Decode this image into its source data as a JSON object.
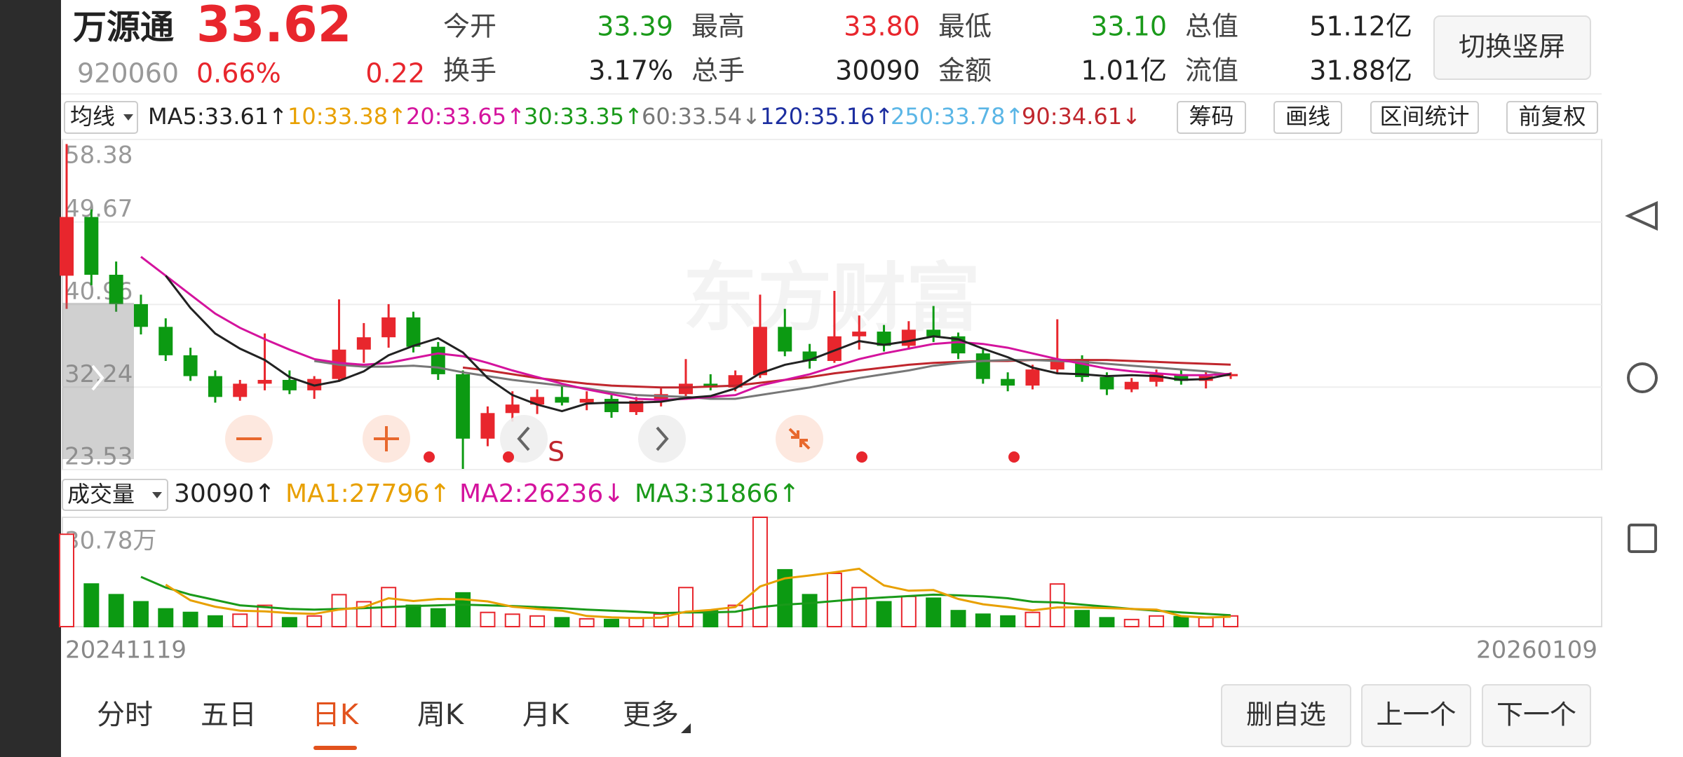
{
  "header": {
    "name": "万源通",
    "price": "33.62",
    "code": "920060",
    "change_pct": "0.66%",
    "change": "0.22",
    "stats": [
      [
        {
          "label": "今开",
          "value": "33.39",
          "color": "#1a9a1a"
        },
        {
          "label": "最高",
          "value": "33.80",
          "color": "#e8262d"
        },
        {
          "label": "最低",
          "value": "33.10",
          "color": "#1a9a1a"
        },
        {
          "label": "总值",
          "value": "51.12亿",
          "color": "#222222"
        }
      ],
      [
        {
          "label": "换手",
          "value": "3.17%",
          "color": "#222222"
        },
        {
          "label": "总手",
          "value": "30090",
          "color": "#222222"
        },
        {
          "label": "金额",
          "value": "1.01亿",
          "color": "#222222"
        },
        {
          "label": "流值",
          "value": "31.88亿",
          "color": "#222222"
        }
      ]
    ],
    "toggle_button": "切换竖屏"
  },
  "indicator_bar": {
    "selector": "均线",
    "items": [
      {
        "text": "MA5:33.61↑",
        "color": "#222222"
      },
      {
        "text": "10:33.38↑",
        "color": "#e8a000"
      },
      {
        "text": "20:33.65↑",
        "color": "#d4139d"
      },
      {
        "text": "30:33.35↑",
        "color": "#1a9a1a"
      },
      {
        "text": "60:33.54↓",
        "color": "#777777"
      },
      {
        "text": "120:35.16↑",
        "color": "#1c2ea0"
      },
      {
        "text": "250:33.78↑",
        "color": "#5bb6e6"
      },
      {
        "text": "90:34.61↓",
        "color": "#c0262d"
      }
    ],
    "buttons": [
      "筹码",
      "画线",
      "区间统计",
      "前复权"
    ]
  },
  "kline": {
    "type": "candlestick",
    "ylim": [
      23.53,
      58.38
    ],
    "yticks": [
      58.38,
      49.67,
      40.96,
      32.24,
      23.53
    ],
    "up_color": "#e8262d",
    "down_color": "#0c9a12",
    "watermark": "东方财富",
    "signal_label": "S",
    "open": [
      44.0,
      50.2,
      44.1,
      41.0,
      38.6,
      35.6,
      33.4,
      31.2,
      32.6,
      33.0,
      31.9,
      33.1,
      36.2,
      37.5,
      39.6,
      36.5,
      33.6,
      26.8,
      29.5,
      30.4,
      31.2,
      30.6,
      31.0,
      29.6,
      30.8,
      31.5,
      32.6,
      32.2,
      33.5,
      38.6,
      36.0,
      35.0,
      37.6,
      38.1,
      36.6,
      38.3,
      37.6,
      35.8,
      33.1,
      32.4,
      34.1,
      35.2,
      33.3,
      32.0,
      32.8,
      33.6,
      32.9,
      33.39
    ],
    "high": [
      57.9,
      51.0,
      45.5,
      42.0,
      39.5,
      36.4,
      34.0,
      33.0,
      37.9,
      34.0,
      33.4,
      41.5,
      39.0,
      41.0,
      40.2,
      37.0,
      34.0,
      30.2,
      31.8,
      32.0,
      32.6,
      31.8,
      31.4,
      31.2,
      32.1,
      35.2,
      33.6,
      34.0,
      42.0,
      40.5,
      36.8,
      42.4,
      39.8,
      38.8,
      39.2,
      40.8,
      38.0,
      36.2,
      33.8,
      34.6,
      39.4,
      35.6,
      33.8,
      33.2,
      34.1,
      34.0,
      33.9,
      33.8
    ],
    "low": [
      40.5,
      43.0,
      40.2,
      37.8,
      35.0,
      32.9,
      30.6,
      30.8,
      31.9,
      31.5,
      31.0,
      32.8,
      34.8,
      36.4,
      35.9,
      33.0,
      23.6,
      26.0,
      28.6,
      29.4,
      30.3,
      29.8,
      29.0,
      29.3,
      30.2,
      31.1,
      31.9,
      31.8,
      33.2,
      35.5,
      34.2,
      34.8,
      36.2,
      36.0,
      36.2,
      37.0,
      35.2,
      32.6,
      31.8,
      32.0,
      33.6,
      32.8,
      31.4,
      31.7,
      32.3,
      32.5,
      32.1,
      33.1
    ],
    "close": [
      50.2,
      44.1,
      41.0,
      38.6,
      35.6,
      33.4,
      31.2,
      32.6,
      33.0,
      31.9,
      33.1,
      36.2,
      37.5,
      39.6,
      36.5,
      33.6,
      26.8,
      29.5,
      30.4,
      31.2,
      30.6,
      31.0,
      29.6,
      30.8,
      31.5,
      32.6,
      32.2,
      33.5,
      38.6,
      36.0,
      35.0,
      37.6,
      38.1,
      36.6,
      38.3,
      37.6,
      35.8,
      33.1,
      32.4,
      34.1,
      35.2,
      33.3,
      32.0,
      32.8,
      33.6,
      32.9,
      33.4,
      33.62
    ],
    "ma_lines": [
      {
        "color": "#c0262d",
        "values": [
          null,
          null,
          null,
          null,
          null,
          null,
          null,
          null,
          null,
          null,
          null,
          null,
          null,
          null,
          null,
          null,
          34.3,
          34.0,
          33.6,
          33.2,
          32.9,
          32.6,
          32.4,
          32.3,
          32.2,
          32.2,
          32.3,
          32.4,
          32.7,
          33.0,
          33.3,
          33.7,
          34.0,
          34.3,
          34.6,
          34.8,
          34.9,
          35.0,
          35.0,
          35.1,
          35.1,
          35.1,
          35.1,
          35.0,
          34.9,
          34.8,
          34.7,
          34.61
        ]
      },
      {
        "color": "#777777",
        "values": [
          null,
          null,
          null,
          null,
          null,
          null,
          null,
          null,
          null,
          null,
          35.0,
          34.6,
          34.4,
          34.4,
          34.5,
          34.3,
          33.8,
          33.4,
          33.0,
          32.7,
          32.4,
          32.1,
          31.7,
          31.4,
          31.3,
          31.2,
          31.0,
          31.0,
          31.4,
          31.8,
          32.2,
          32.7,
          33.2,
          33.6,
          34.0,
          34.5,
          34.8,
          35.0,
          35.1,
          35.1,
          35.0,
          34.9,
          34.7,
          34.5,
          34.3,
          34.1,
          33.9,
          33.54
        ]
      },
      {
        "color": "#d4139d",
        "values": [
          null,
          null,
          null,
          46.0,
          44.0,
          42.0,
          40.0,
          38.5,
          37.3,
          36.2,
          35.2,
          34.8,
          34.6,
          34.8,
          35.3,
          35.8,
          35.5,
          34.8,
          34.0,
          33.3,
          32.6,
          32.0,
          31.5,
          31.0,
          30.9,
          31.0,
          31.2,
          31.4,
          32.4,
          33.0,
          33.6,
          34.4,
          35.2,
          35.8,
          36.3,
          36.8,
          37.0,
          36.8,
          36.4,
          35.8,
          35.2,
          34.7,
          34.2,
          33.9,
          33.7,
          33.5,
          33.5,
          33.65
        ]
      },
      {
        "color": "#222222",
        "values": [
          null,
          null,
          null,
          null,
          44.0,
          40.6,
          37.9,
          36.3,
          35.1,
          33.3,
          32.4,
          32.9,
          33.9,
          35.6,
          36.6,
          37.4,
          35.9,
          33.2,
          31.4,
          30.4,
          29.7,
          30.5,
          30.6,
          30.6,
          30.7,
          31.1,
          31.3,
          32.1,
          33.7,
          34.6,
          35.1,
          36.1,
          37.1,
          36.7,
          37.1,
          37.6,
          37.3,
          36.3,
          35.4,
          34.3,
          33.7,
          33.6,
          33.4,
          33.5,
          33.4,
          33.0,
          33.1,
          33.61
        ]
      }
    ]
  },
  "volume": {
    "type": "bar",
    "selector": "成交量",
    "items": [
      {
        "text": "30090↑",
        "color": "#222222"
      },
      {
        "text": "MA1:27796↑",
        "color": "#e8a000"
      },
      {
        "text": "MA2:26236↓",
        "color": "#d4139d"
      },
      {
        "text": "MA3:31866↑",
        "color": "#1a9a1a"
      }
    ],
    "ylim": [
      0,
      307800
    ],
    "yticks": [
      {
        "value": 307800,
        "label": "30.78万"
      }
    ],
    "values": [
      260000,
      120000,
      90000,
      70000,
      50000,
      40000,
      30000,
      35000,
      60000,
      25000,
      30000,
      90000,
      70000,
      110000,
      60000,
      50000,
      95000,
      40000,
      35000,
      30000,
      25000,
      22000,
      20000,
      25000,
      35000,
      110000,
      45000,
      60000,
      307800,
      160000,
      90000,
      150000,
      110000,
      70000,
      85000,
      80000,
      45000,
      35000,
      30000,
      40000,
      120000,
      45000,
      25000,
      20000,
      30000,
      28000,
      25000,
      30090
    ],
    "ma_lines": [
      {
        "color": "#1a9a1a",
        "values": [
          null,
          null,
          null,
          140000,
          110000,
          90000,
          75000,
          60000,
          55000,
          50000,
          48000,
          50000,
          52000,
          55000,
          58000,
          60000,
          62000,
          60000,
          58000,
          55000,
          52000,
          48000,
          45000,
          42000,
          38000,
          40000,
          40000,
          42000,
          55000,
          62000,
          66000,
          72000,
          78000,
          82000,
          86000,
          90000,
          88000,
          85000,
          80000,
          70000,
          68000,
          62000,
          56000,
          50000,
          45000,
          40000,
          36000,
          31866
        ]
      },
      {
        "color": "#e8a000",
        "values": [
          null,
          null,
          null,
          null,
          118000,
          74000,
          56000,
          45000,
          43000,
          38000,
          36000,
          48000,
          55000,
          80000,
          72000,
          78000,
          77000,
          71000,
          56000,
          50000,
          45000,
          30000,
          26000,
          24000,
          25000,
          42000,
          47000,
          55000,
          113000,
          136000,
          144000,
          153000,
          163000,
          116000,
          101000,
          103000,
          78000,
          63000,
          55000,
          46000,
          54000,
          54000,
          52000,
          50000,
          48000,
          29600,
          25600,
          27796
        ]
      }
    ]
  },
  "dates": {
    "start": "20241119",
    "end": "20260109"
  },
  "tabs": {
    "items": [
      "分时",
      "五日",
      "日K",
      "周K",
      "月K",
      "更多"
    ],
    "active": 2
  },
  "actions": [
    "删自选",
    "上一个",
    "下一个"
  ]
}
